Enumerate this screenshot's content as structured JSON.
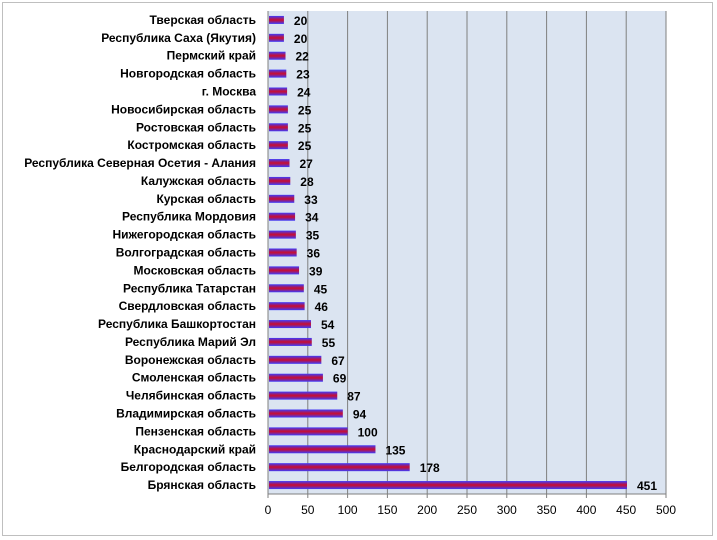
{
  "chart_data": {
    "type": "bar",
    "orientation": "horizontal",
    "categories": [
      "Тверская область",
      "Республика Саха (Якутия)",
      "Пермский край",
      "Новгородская область",
      "г. Москва",
      "Новосибирская область",
      "Ростовская область",
      "Костромская область",
      "Республика Северная Осетия - Алания",
      "Калужская область",
      "Курская область",
      "Республика Мордовия",
      "Нижегородская область",
      "Волгоградская область",
      "Московская область",
      "Республика Татарстан",
      "Свердловская область",
      "Республика Башкортостан",
      "Республика Марий Эл",
      "Воронежская область",
      "Смоленская область",
      "Челябинская область",
      "Владимирская область",
      "Пензенская область",
      "Краснодарский край",
      "Белгородская область",
      "Брянская область"
    ],
    "values": [
      20,
      20,
      22,
      23,
      24,
      25,
      25,
      25,
      27,
      28,
      33,
      34,
      35,
      36,
      39,
      45,
      46,
      54,
      55,
      67,
      69,
      87,
      94,
      100,
      135,
      178,
      451
    ],
    "value_labels": [
      "20",
      "20",
      "22",
      "23",
      "24",
      "25",
      "25",
      "25",
      "27",
      "28",
      "33",
      "34",
      "35",
      "36",
      "39",
      "45",
      "46",
      "54",
      "55",
      "67",
      "69",
      "87",
      "94",
      "100",
      "135",
      "178",
      "451"
    ],
    "xlim": [
      0,
      500
    ],
    "xticks": [
      "0",
      "50",
      "100",
      "150",
      "200",
      "250",
      "300",
      "350",
      "400",
      "450",
      "500"
    ],
    "title": "",
    "xlabel": "",
    "ylabel": "",
    "grid": "vertical",
    "legend": "none",
    "colors": {
      "bar_top": "#3b3bff",
      "bar_mid": "#c0103c",
      "bar_bottom": "#3b3bff",
      "plot_bg": "#dbe4f1",
      "grid": "#7f7f7f"
    }
  }
}
